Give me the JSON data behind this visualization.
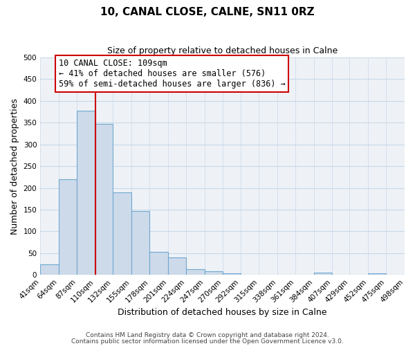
{
  "title": "10, CANAL CLOSE, CALNE, SN11 0RZ",
  "subtitle": "Size of property relative to detached houses in Calne",
  "xlabel": "Distribution of detached houses by size in Calne",
  "ylabel": "Number of detached properties",
  "bin_edges": [
    41,
    64,
    87,
    110,
    132,
    155,
    178,
    201,
    224,
    247,
    270,
    292,
    315,
    338,
    361,
    384,
    407,
    429,
    452,
    475,
    498
  ],
  "bin_labels": [
    "41sqm",
    "64sqm",
    "87sqm",
    "110sqm",
    "132sqm",
    "155sqm",
    "178sqm",
    "201sqm",
    "224sqm",
    "247sqm",
    "270sqm",
    "292sqm",
    "315sqm",
    "338sqm",
    "361sqm",
    "384sqm",
    "407sqm",
    "429sqm",
    "452sqm",
    "475sqm",
    "498sqm"
  ],
  "bar_heights": [
    25,
    220,
    378,
    348,
    190,
    147,
    53,
    40,
    13,
    8,
    3,
    0,
    0,
    0,
    0,
    5,
    0,
    0,
    3,
    0
  ],
  "bar_color": "#cddaea",
  "bar_edge_color": "#6fa8d0",
  "property_line_x": 110,
  "property_line_color": "#cc0000",
  "ylim": [
    0,
    500
  ],
  "yticks": [
    0,
    50,
    100,
    150,
    200,
    250,
    300,
    350,
    400,
    450,
    500
  ],
  "annotation_line1": "10 CANAL CLOSE: 109sqm",
  "annotation_line2": "← 41% of detached houses are smaller (576)",
  "annotation_line3": "59% of semi-detached houses are larger (836) →",
  "annotation_box_color": "#ffffff",
  "annotation_box_edge_color": "#cc0000",
  "footer_line1": "Contains HM Land Registry data © Crown copyright and database right 2024.",
  "footer_line2": "Contains public sector information licensed under the Open Government Licence v3.0.",
  "grid_color": "#c8d8e8",
  "background_color": "#eef2f7",
  "title_fontsize": 11,
  "subtitle_fontsize": 9,
  "xlabel_fontsize": 9,
  "ylabel_fontsize": 9,
  "tick_fontsize": 7.5,
  "footer_fontsize": 6.5,
  "annotation_fontsize": 8.5
}
